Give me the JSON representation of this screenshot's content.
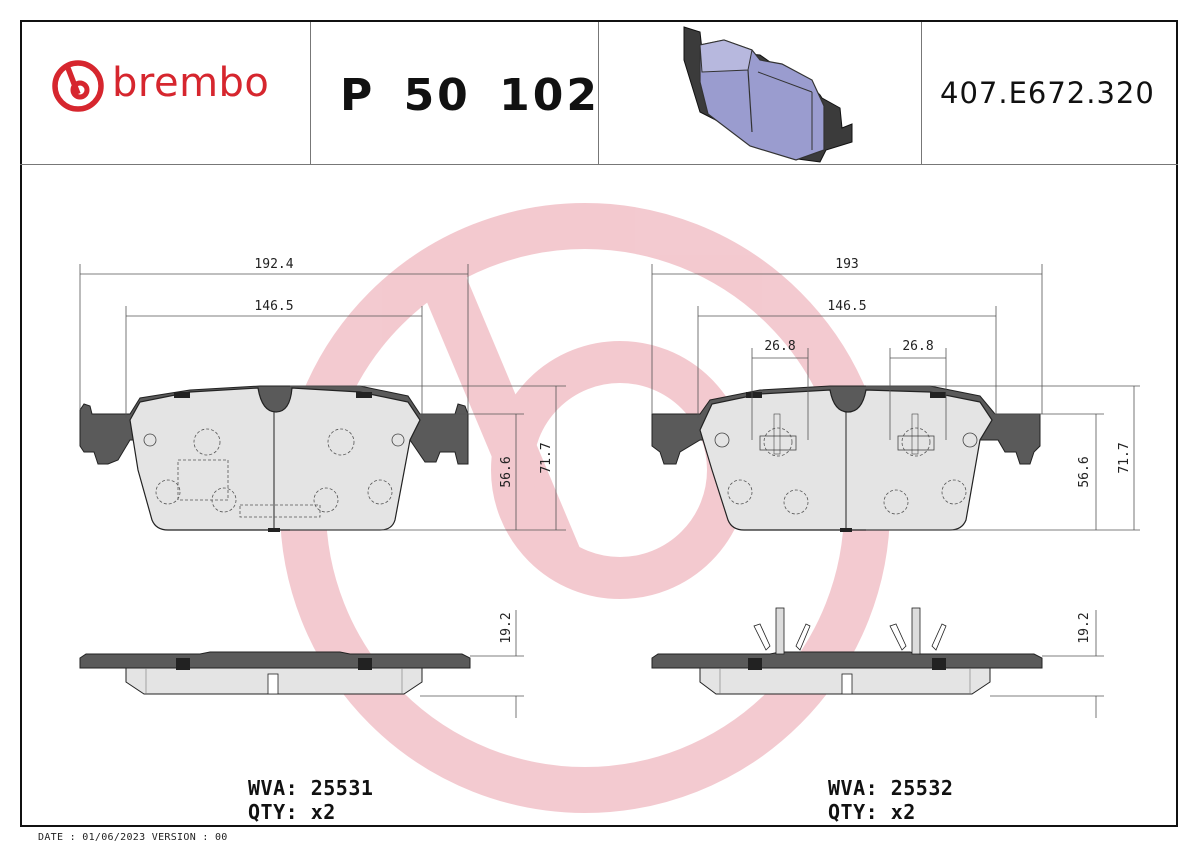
{
  "header": {
    "brand": "brembo",
    "part_number": "P 50 102",
    "reference_number": "407.E672.320"
  },
  "left_pad": {
    "dims": {
      "overall_width": "192.4",
      "inner_width": "146.5",
      "height_small": "56.6",
      "height_large": "71.7",
      "thickness": "19.2"
    },
    "wva": "WVA: 25531",
    "qty": "QTY: x2"
  },
  "right_pad": {
    "dims": {
      "overall_width": "193",
      "inner_width": "146.5",
      "sensor_left": "26.8",
      "sensor_right": "26.8",
      "height_small": "56.6",
      "height_large": "71.7",
      "thickness": "19.2"
    },
    "wva": "WVA: 25532",
    "qty": "QTY: x2"
  },
  "footer": {
    "text": "DATE : 01/06/2023 VERSION : 00"
  },
  "colors": {
    "brand_red": "#d6262e",
    "watermark": "#f2c9cd",
    "backing_plate": "#555555",
    "friction_material": "#e6e6e6",
    "pad_render": "#9a9ccf"
  },
  "icons": {
    "logo": "brembo-logo-icon",
    "watermark": "brembo-watermark-icon",
    "pad_render": "brake-pad-3d-icon"
  }
}
